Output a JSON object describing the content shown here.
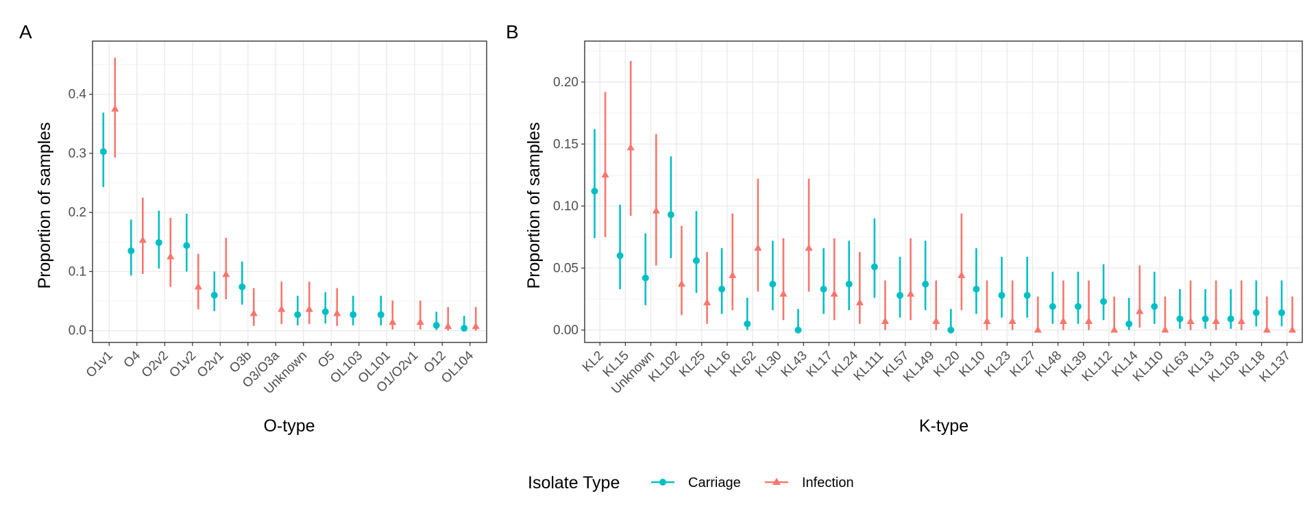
{
  "colors": {
    "carriage": "#00BFC4",
    "infection": "#F8766D",
    "panel_border": "#333333",
    "grid_major": "#ebebeb",
    "grid_minor": "#f3f3f3",
    "tick_text": "#4d4d4d"
  },
  "legend": {
    "title": "Isolate Type",
    "items": [
      {
        "key": "carriage",
        "label": "Carriage",
        "shape": "circle"
      },
      {
        "key": "infection",
        "label": "Infection",
        "shape": "triangle"
      }
    ],
    "position": "bottom"
  },
  "chart_data": [
    {
      "panel": "A",
      "type": "scatter",
      "xlabel": "O-type",
      "ylabel": "Proportion of samples",
      "ylim": [
        -0.02,
        0.49
      ],
      "yticks": [
        0.0,
        0.1,
        0.2,
        0.3,
        0.4
      ],
      "ytick_labels": [
        "0.0",
        "0.1",
        "0.2",
        "0.3",
        "0.4"
      ],
      "grid": true,
      "categories": [
        "O1v1",
        "O4",
        "O2v2",
        "O1v2",
        "O2v1",
        "O3b",
        "O3/O3a",
        "Unknown",
        "O5",
        "OL103",
        "OL101",
        "O1/O2v1",
        "O12",
        "OL104"
      ],
      "series": [
        {
          "name": "Carriage",
          "key": "carriage",
          "values": [
            0.303,
            0.135,
            0.149,
            0.144,
            0.06,
            0.074,
            null,
            0.027,
            0.032,
            0.027,
            0.027,
            null,
            0.009,
            0.004
          ],
          "lower": [
            0.243,
            0.093,
            0.105,
            0.1,
            0.033,
            0.044,
            null,
            0.009,
            0.012,
            0.009,
            0.009,
            null,
            0.001,
            0.0
          ],
          "upper": [
            0.369,
            0.188,
            0.203,
            0.198,
            0.1,
            0.117,
            null,
            0.059,
            0.065,
            0.059,
            0.059,
            null,
            0.032,
            0.025
          ]
        },
        {
          "name": "Infection",
          "key": "infection",
          "values": [
            0.375,
            0.153,
            0.125,
            0.074,
            0.095,
            0.029,
            0.036,
            0.036,
            0.029,
            null,
            0.014,
            0.014,
            0.007,
            0.007
          ],
          "lower": [
            0.293,
            0.096,
            0.074,
            0.036,
            0.053,
            0.008,
            0.011,
            0.011,
            0.008,
            null,
            0.002,
            0.002,
            0.0,
            0.0
          ],
          "upper": [
            0.462,
            0.225,
            0.191,
            0.13,
            0.157,
            0.072,
            0.083,
            0.083,
            0.072,
            null,
            0.051,
            0.051,
            0.04,
            0.04
          ]
        }
      ]
    },
    {
      "panel": "B",
      "type": "scatter",
      "xlabel": "K-type",
      "ylabel": "Proportion of samples",
      "ylim": [
        -0.01,
        0.233
      ],
      "yticks": [
        0.0,
        0.05,
        0.1,
        0.15,
        0.2
      ],
      "ytick_labels": [
        "0.00",
        "0.05",
        "0.10",
        "0.15",
        "0.20"
      ],
      "grid": true,
      "categories": [
        "KL2",
        "KL15",
        "Unknown",
        "KL102",
        "KL25",
        "KL16",
        "KL62",
        "KL30",
        "KL43",
        "KL17",
        "KL24",
        "KL111",
        "KL57",
        "KL149",
        "KL20",
        "KL10",
        "KL23",
        "KL27",
        "KL48",
        "KL39",
        "KL112",
        "KL14",
        "KL110",
        "KL63",
        "KL13",
        "KL103",
        "KL18",
        "KL137"
      ],
      "series": [
        {
          "name": "Carriage",
          "key": "carriage",
          "values": [
            0.112,
            0.06,
            0.042,
            0.093,
            0.056,
            0.033,
            0.005,
            0.037,
            0.0,
            0.033,
            0.037,
            0.051,
            0.028,
            0.037,
            0.0,
            0.033,
            0.028,
            0.028,
            0.019,
            0.019,
            0.023,
            0.005,
            0.019,
            0.009,
            0.009,
            0.009,
            0.014,
            0.014
          ],
          "lower": [
            0.074,
            0.033,
            0.02,
            0.058,
            0.03,
            0.013,
            0.0,
            0.016,
            0.0,
            0.013,
            0.016,
            0.026,
            0.01,
            0.016,
            0.0,
            0.013,
            0.01,
            0.01,
            0.005,
            0.005,
            0.008,
            0.0,
            0.005,
            0.001,
            0.001,
            0.001,
            0.003,
            0.003
          ],
          "upper": [
            0.162,
            0.101,
            0.078,
            0.14,
            0.096,
            0.066,
            0.026,
            0.072,
            0.017,
            0.066,
            0.072,
            0.09,
            0.059,
            0.072,
            0.017,
            0.066,
            0.059,
            0.059,
            0.047,
            0.047,
            0.053,
            0.026,
            0.047,
            0.033,
            0.033,
            0.033,
            0.04,
            0.04
          ]
        },
        {
          "name": "Infection",
          "key": "infection",
          "values": [
            0.125,
            0.147,
            0.096,
            0.037,
            0.022,
            0.044,
            0.066,
            0.029,
            0.066,
            0.029,
            0.022,
            0.007,
            0.029,
            0.007,
            0.044,
            0.007,
            0.007,
            0.0,
            0.007,
            0.007,
            0.0,
            0.015,
            0.0,
            0.007,
            0.007,
            0.007,
            0.0,
            0.0
          ],
          "lower": [
            0.075,
            0.092,
            0.052,
            0.012,
            0.005,
            0.016,
            0.031,
            0.008,
            0.031,
            0.008,
            0.005,
            0.0,
            0.008,
            0.0,
            0.016,
            0.0,
            0.0,
            0.0,
            0.0,
            0.0,
            0.0,
            0.002,
            0.0,
            0.0,
            0.0,
            0.0,
            0.0,
            0.0
          ],
          "upper": [
            0.192,
            0.217,
            0.158,
            0.084,
            0.063,
            0.094,
            0.122,
            0.074,
            0.122,
            0.074,
            0.063,
            0.04,
            0.074,
            0.04,
            0.094,
            0.04,
            0.04,
            0.027,
            0.04,
            0.04,
            0.027,
            0.052,
            0.027,
            0.04,
            0.04,
            0.04,
            0.027,
            0.027
          ]
        }
      ]
    }
  ]
}
